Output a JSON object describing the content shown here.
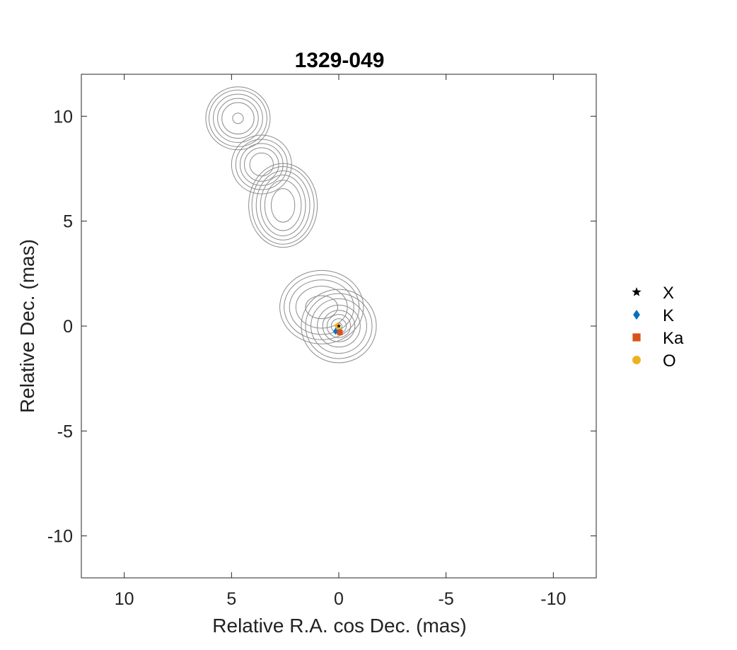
{
  "chart_data": {
    "type": "scatter",
    "title": "1329-049",
    "xlabel": "Relative R.A. cos Dec. (mas)",
    "ylabel": "Relative Dec. (mas)",
    "xlim": [
      12,
      -12
    ],
    "ylim": [
      -12,
      12
    ],
    "x_reversed": true,
    "xticks": [
      10,
      5,
      0,
      -5,
      -10
    ],
    "xtick_labels": [
      "10",
      "5",
      "0",
      "-5",
      "-10"
    ],
    "yticks": [
      10,
      5,
      0,
      -5,
      -10
    ],
    "ytick_labels": [
      "10",
      "5",
      "0",
      "-5",
      "-10"
    ],
    "grid": false,
    "legend_position": "outside-right",
    "series": [
      {
        "name": "X",
        "marker": "star",
        "color": "#000000",
        "points": [
          {
            "x": 0.0,
            "y": 0.0
          }
        ]
      },
      {
        "name": "K",
        "marker": "diamond",
        "color": "#0072BD",
        "points": [
          {
            "x": 0.15,
            "y": -0.25
          }
        ]
      },
      {
        "name": "Ka",
        "marker": "square",
        "color": "#D95319",
        "points": [
          {
            "x": -0.05,
            "y": -0.3
          }
        ]
      },
      {
        "name": "O",
        "marker": "circle",
        "color": "#EDB120",
        "points": [
          {
            "x": 0.05,
            "y": 0.0
          }
        ]
      }
    ],
    "contours": {
      "color": "#8c8c8c",
      "components": [
        {
          "x": 4.7,
          "y": 9.9,
          "rx": [
            0.25,
            0.75,
            0.95,
            1.15,
            1.35,
            1.5
          ],
          "ry": [
            0.25,
            0.75,
            0.95,
            1.15,
            1.35,
            1.5
          ]
        },
        {
          "x": 3.6,
          "y": 7.7,
          "rx": [
            0.55,
            0.8,
            1.0,
            1.2,
            1.4
          ],
          "ry": [
            0.55,
            0.8,
            1.0,
            1.2,
            1.4
          ]
        },
        {
          "x": 2.6,
          "y": 5.75,
          "rx": [
            0.55,
            0.85,
            1.05,
            1.25,
            1.45,
            1.6
          ],
          "ry": [
            0.8,
            1.2,
            1.45,
            1.65,
            1.85,
            2.0
          ]
        },
        {
          "x": 0.0,
          "y": 0.0,
          "rx": [
            0.15,
            0.35,
            0.55,
            0.75,
            1.0,
            1.3,
            1.55,
            1.75
          ],
          "ry": [
            0.15,
            0.35,
            0.55,
            0.75,
            1.0,
            1.3,
            1.55,
            1.75
          ]
        },
        {
          "x": 0.8,
          "y": 0.9,
          "rx": [
            0.75,
            1.2,
            1.5,
            1.75,
            1.95
          ],
          "ry": [
            0.55,
            1.0,
            1.3,
            1.55,
            1.75
          ]
        }
      ]
    }
  }
}
